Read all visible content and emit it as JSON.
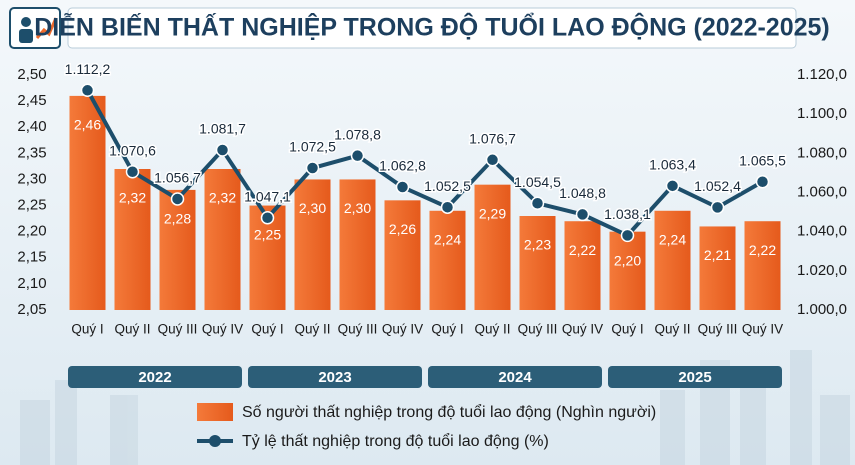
{
  "chart_data": {
    "type": "combo",
    "title": "DIỄN BIẾN THẤT NGHIỆP TRONG ĐỘ TUỔI LAO ĐỘNG (2022-2025)",
    "categories": [
      "Quý I",
      "Quý II",
      "Quý III",
      "Quý IV",
      "Quý I",
      "Quý II",
      "Quý III",
      "Quý IV",
      "Quý I",
      "Quý II",
      "Quý III",
      "Quý IV",
      "Quý I",
      "Quý II",
      "Quý III",
      "Quý IV"
    ],
    "category_groups": [
      "2022",
      "2023",
      "2024",
      "2025"
    ],
    "series": [
      {
        "name": "Số người thất nghiệp trong độ tuổi lao động (Nghìn người)",
        "type": "bar",
        "color": "#f06a2a",
        "values": [
          2.46,
          2.32,
          2.28,
          2.32,
          2.25,
          2.3,
          2.3,
          2.26,
          2.24,
          2.29,
          2.23,
          2.22,
          2.2,
          2.24,
          2.21,
          2.22
        ],
        "value_labels": [
          "2,46",
          "2,32",
          "2,28",
          "2,32",
          "2,25",
          "2,30",
          "2,30",
          "2,26",
          "2,24",
          "2,29",
          "2,23",
          "2,22",
          "2,20",
          "2,24",
          "2,21",
          "2,22"
        ]
      },
      {
        "name": "Tỷ lệ thất nghiệp trong độ tuổi lao động (%)",
        "type": "line",
        "axis": "y2",
        "color": "#1d4e6b",
        "values": [
          1112.2,
          1070.6,
          1056.7,
          1081.7,
          1047.1,
          1072.5,
          1078.8,
          1062.8,
          1052.5,
          1076.7,
          1054.5,
          1048.8,
          1038.1,
          1063.4,
          1052.4,
          1065.5
        ],
        "value_labels": [
          "1.112,2",
          "1.070,6",
          "1.056,7",
          "1.081,7",
          "1.047,1",
          "1.072,5",
          "1.078,8",
          "1.062,8",
          "1.052,5",
          "1.076,7",
          "1.054,5",
          "1.048,8",
          "1.038,1",
          "1.063,4",
          "1.052,4",
          "1.065,5"
        ]
      }
    ],
    "ylim": [
      2.05,
      2.5
    ],
    "yticks": [
      {
        "value": 2.05,
        "label": "2,05"
      },
      {
        "value": 2.1,
        "label": "2,10"
      },
      {
        "value": 2.15,
        "label": "2,15"
      },
      {
        "value": 2.2,
        "label": "2,20"
      },
      {
        "value": 2.25,
        "label": "2,25"
      },
      {
        "value": 2.3,
        "label": "2,30"
      },
      {
        "value": 2.35,
        "label": "2,35"
      },
      {
        "value": 2.4,
        "label": "2,40"
      },
      {
        "value": 2.45,
        "label": "2,45"
      },
      {
        "value": 2.5,
        "label": "2,50"
      }
    ],
    "y2lim": [
      1000,
      1120
    ],
    "y2ticks": [
      {
        "value": 1000,
        "label": "1.000,0"
      },
      {
        "value": 1020,
        "label": "1.020,0"
      },
      {
        "value": 1040,
        "label": "1.040,0"
      },
      {
        "value": 1060,
        "label": "1.060,0"
      },
      {
        "value": 1080,
        "label": "1.080,0"
      },
      {
        "value": 1100,
        "label": "1.100,0"
      },
      {
        "value": 1120,
        "label": "1.120,0"
      }
    ],
    "grid": false
  }
}
